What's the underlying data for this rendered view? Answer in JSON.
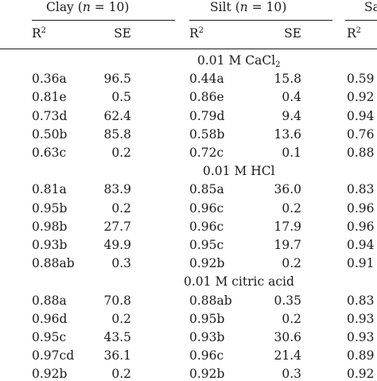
{
  "header": {
    "clay": {
      "name": "Clay",
      "n": "n",
      "eq": " = 10"
    },
    "silt": {
      "name": "Silt",
      "n": "n",
      "eq": " = 10"
    },
    "sand": {
      "name": "Sa"
    },
    "r2_label": "R",
    "r2_sup": "2",
    "se_label": "SE"
  },
  "sections": [
    {
      "title_pre": "0.01 M CaCl",
      "title_sub": "2",
      "rows": [
        {
          "clay_r2": "0.36a",
          "clay_se": "96.5",
          "silt_r2": "0.44a",
          "silt_se": "15.8",
          "sand_r2": "0.59"
        },
        {
          "clay_r2": "0.81e",
          "clay_se": "0.5",
          "silt_r2": "0.86e",
          "silt_se": "0.4",
          "sand_r2": "0.92"
        },
        {
          "clay_r2": "0.73d",
          "clay_se": "62.4",
          "silt_r2": "0.79d",
          "silt_se": "9.4",
          "sand_r2": "0.94"
        },
        {
          "clay_r2": "0.50b",
          "clay_se": "85.8",
          "silt_r2": "0.58b",
          "silt_se": "13.6",
          "sand_r2": "0.76"
        },
        {
          "clay_r2": "0.63c",
          "clay_se": "0.2",
          "silt_r2": "0.72c",
          "silt_se": "0.1",
          "sand_r2": "0.88"
        }
      ]
    },
    {
      "title_pre": "0.01 M HCl",
      "title_sub": "",
      "rows": [
        {
          "clay_r2": "0.81a",
          "clay_se": "83.9",
          "silt_r2": "0.85a",
          "silt_se": "36.0",
          "sand_r2": "0.83"
        },
        {
          "clay_r2": "0.95b",
          "clay_se": "0.2",
          "silt_r2": "0.96c",
          "silt_se": "0.2",
          "sand_r2": "0.96"
        },
        {
          "clay_r2": "0.98b",
          "clay_se": "27.7",
          "silt_r2": "0.96c",
          "silt_se": "17.9",
          "sand_r2": "0.96"
        },
        {
          "clay_r2": "0.93b",
          "clay_se": "49.9",
          "silt_r2": "0.95c",
          "silt_se": "19.7",
          "sand_r2": "0.94"
        },
        {
          "clay_r2": "0.88ab",
          "clay_se": "0.3",
          "silt_r2": "0.92b",
          "silt_se": "0.2",
          "sand_r2": "0.91"
        }
      ]
    },
    {
      "title_pre": "0.01 M citric acid",
      "title_sub": "",
      "rows": [
        {
          "clay_r2": "0.88a",
          "clay_se": "70.8",
          "silt_r2": "0.88ab",
          "silt_se": "0.35",
          "sand_r2": "0.83"
        },
        {
          "clay_r2": "0.96d",
          "clay_se": "0.2",
          "silt_r2": "0.95b",
          "silt_se": "0.2",
          "sand_r2": "0.93"
        },
        {
          "clay_r2": "0.95c",
          "clay_se": "43.5",
          "silt_r2": "0.93b",
          "silt_se": "30.6",
          "sand_r2": "0.93"
        },
        {
          "clay_r2": "0.97cd",
          "clay_se": "36.1",
          "silt_r2": "0.96c",
          "silt_se": "21.4",
          "sand_r2": "0.89"
        },
        {
          "clay_r2": "0.92b",
          "clay_se": "0.2",
          "silt_r2": "0.92b",
          "silt_se": "0.3",
          "sand_r2": "0.92"
        }
      ]
    }
  ]
}
